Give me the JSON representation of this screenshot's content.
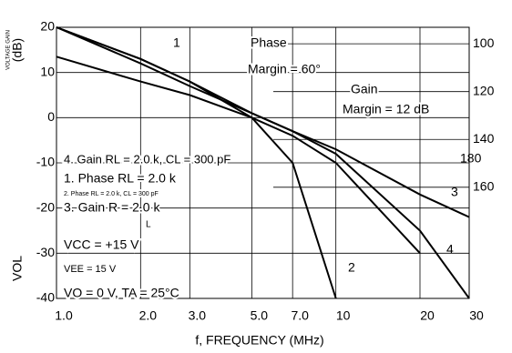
{
  "chart_data": {
    "type": "line",
    "ylabel": "(dB)",
    "ylabel_small": "VOLTAGE GAIN",
    "ylabel_bottom": "VOL",
    "xlabel": "f, FREQUENCY (MHz)",
    "x": [
      1,
      2,
      3,
      5,
      7,
      10,
      20,
      30
    ],
    "xlim": [
      1,
      30
    ],
    "xticks": [
      {
        "value": 1,
        "label": "1.0"
      },
      {
        "value": 2,
        "label": "2.0"
      },
      {
        "value": 3,
        "label": "3.0"
      },
      {
        "value": 5,
        "label": "5.0"
      },
      {
        "value": 7,
        "label": "7.0"
      },
      10,
      20,
      30
    ],
    "log_x": true,
    "ylim": [
      -40,
      20
    ],
    "yticks": [
      -40,
      -30,
      -20,
      -10,
      0,
      10,
      20
    ],
    "y2lim": [
      93.1,
      206.5
    ],
    "y2ticks": [
      100,
      120,
      140,
      160
    ],
    "grid": true,
    "series": [
      {
        "color": "#000000",
        "values": [
          20,
          13,
          8,
          0,
          -10,
          -40,
          null,
          null
        ]
      },
      {
        "color": "#000000",
        "values": [
          20,
          12,
          7,
          1,
          -3,
          -7,
          -17,
          -22
        ]
      },
      {
        "color": "#000000",
        "values": [
          13.5,
          8,
          5,
          0,
          -4,
          -10,
          -30,
          null
        ]
      },
      {
        "color": "#000000",
        "values": [
          20,
          13,
          8,
          1,
          -3,
          -8,
          -25,
          -40
        ]
      }
    ],
    "annotations": [
      "1",
      "2",
      "3",
      "4",
      "Phase",
      "Margin = 60°",
      "Gain",
      "Margin = 12 dB",
      "180",
      "4. Gain RL = 2.0 k, CL = 300 pF",
      "1. Phase RL = 2.0 k",
      "2. Phase RL = 2.0 k, CL = 300 pF",
      "3. Gain R = 2.0 k",
      "L",
      "VCC = +15 V",
      "VEE = 15 V",
      "VO = 0 V, TA = 25°C"
    ]
  }
}
